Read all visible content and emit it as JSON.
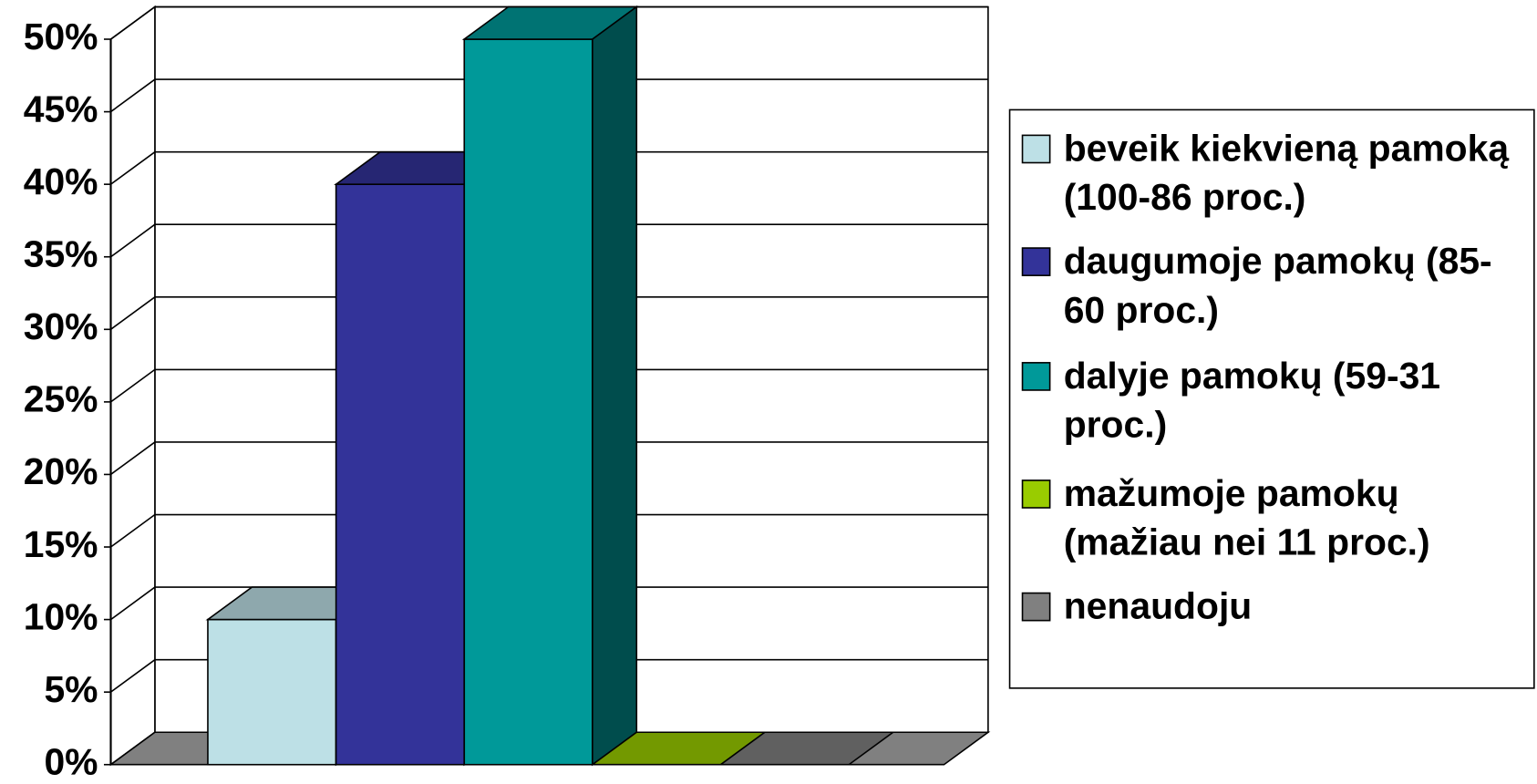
{
  "chart_data": {
    "type": "bar3d",
    "series": [
      {
        "name": "beveik kiekvieną pamoką (100-86 proc.)",
        "color": "#bde0e6",
        "values": [
          10
        ]
      },
      {
        "name": "daugumoje pamokų (85-60 proc.)",
        "color": "#333399",
        "values": [
          40
        ]
      },
      {
        "name": "dalyje pamokų (59-31 proc.)",
        "color": "#009999",
        "values": [
          50
        ]
      },
      {
        "name": "mažumoje pamokų (mažiau nei 11 proc.)",
        "color": "#99cc00",
        "values": [
          0
        ]
      },
      {
        "name": "nenaudoju",
        "color": "#808080",
        "values": [
          0
        ]
      }
    ],
    "ylim": [
      0,
      50
    ],
    "yticks": [
      {
        "value": 0,
        "label": "0%"
      },
      {
        "value": 5,
        "label": "5%"
      },
      {
        "value": 10,
        "label": "10%"
      },
      {
        "value": 15,
        "label": "15%"
      },
      {
        "value": 20,
        "label": "20%"
      },
      {
        "value": 25,
        "label": "25%"
      },
      {
        "value": 30,
        "label": "30%"
      },
      {
        "value": 35,
        "label": "35%"
      },
      {
        "value": 40,
        "label": "40%"
      },
      {
        "value": 45,
        "label": "45%"
      },
      {
        "value": 50,
        "label": "50%"
      }
    ],
    "grid": true,
    "legend": "right"
  }
}
